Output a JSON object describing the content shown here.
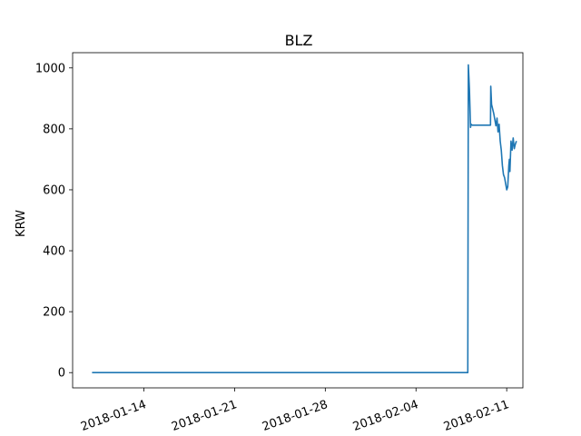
{
  "chart_data": {
    "type": "line",
    "title": "BLZ",
    "xlabel": "",
    "ylabel": "KRW",
    "grid": false,
    "xlim": [
      "2018-01-08T12:00",
      "2018-02-12T06:00"
    ],
    "ylim": [
      -50,
      1050
    ],
    "x_ticks": [
      "2018-01-14",
      "2018-01-21",
      "2018-01-28",
      "2018-02-04",
      "2018-02-11"
    ],
    "y_ticks": [
      0,
      200,
      400,
      600,
      800,
      1000
    ],
    "series": [
      {
        "color": "#1f77b4",
        "points": [
          [
            "2018-01-10T00:00",
            0
          ],
          [
            "2018-02-08T00:00",
            0
          ],
          [
            "2018-02-08T01:00",
            1010
          ],
          [
            "2018-02-08T03:00",
            930
          ],
          [
            "2018-02-08T05:00",
            805
          ],
          [
            "2018-02-08T06:00",
            815
          ],
          [
            "2018-02-08T08:00",
            812
          ],
          [
            "2018-02-09T18:00",
            812
          ],
          [
            "2018-02-09T18:30",
            940
          ],
          [
            "2018-02-09T20:00",
            880
          ],
          [
            "2018-02-10T00:00",
            850
          ],
          [
            "2018-02-10T04:00",
            810
          ],
          [
            "2018-02-10T06:00",
            835
          ],
          [
            "2018-02-10T08:00",
            790
          ],
          [
            "2018-02-10T10:00",
            815
          ],
          [
            "2018-02-10T12:00",
            760
          ],
          [
            "2018-02-10T14:00",
            730
          ],
          [
            "2018-02-10T16:00",
            680
          ],
          [
            "2018-02-10T18:00",
            650
          ],
          [
            "2018-02-10T20:00",
            640
          ],
          [
            "2018-02-10T22:00",
            620
          ],
          [
            "2018-02-11T00:00",
            600
          ],
          [
            "2018-02-11T02:00",
            610
          ],
          [
            "2018-02-11T04:00",
            680
          ],
          [
            "2018-02-11T05:00",
            700
          ],
          [
            "2018-02-11T06:00",
            660
          ],
          [
            "2018-02-11T08:00",
            760
          ],
          [
            "2018-02-11T10:00",
            730
          ],
          [
            "2018-02-11T12:00",
            770
          ],
          [
            "2018-02-11T14:00",
            735
          ],
          [
            "2018-02-11T16:00",
            750
          ],
          [
            "2018-02-11T18:00",
            760
          ]
        ]
      }
    ]
  }
}
